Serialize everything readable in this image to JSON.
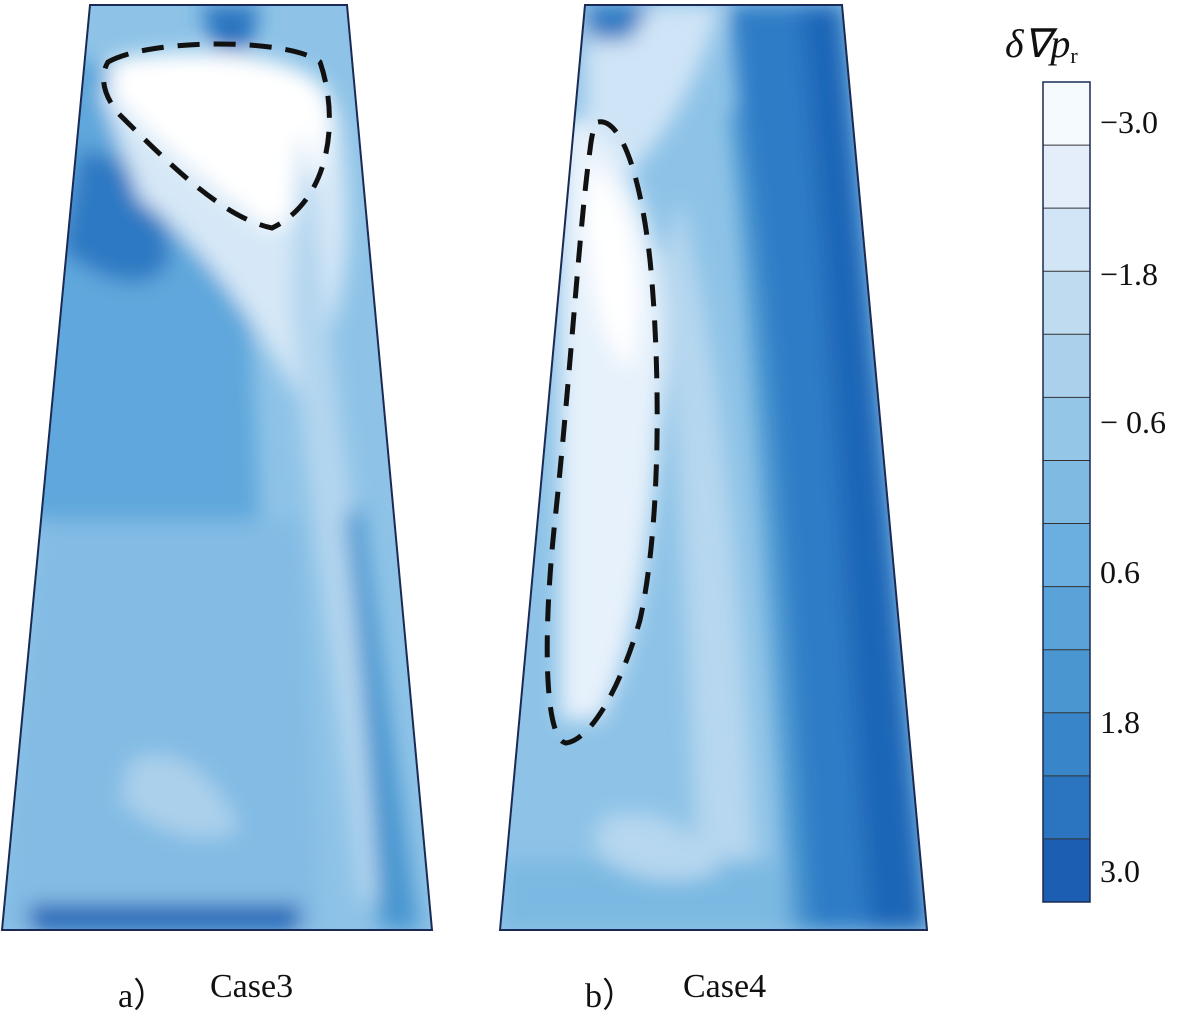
{
  "chart_data": {
    "type": "heatmap",
    "panels": [
      {
        "label": "a）",
        "title": "Case3"
      },
      {
        "label": "b）",
        "title": "Case4"
      }
    ],
    "colorbar": {
      "title_main": "δ∇p",
      "title_sub": "r",
      "tick_labels": [
        "−3.0",
        "−1.8",
        "− 0.6",
        "0.6",
        "1.8",
        "3.0"
      ],
      "levels": [
        -3.6,
        -3.0,
        -2.4,
        -1.8,
        -1.2,
        -0.6,
        0.0,
        0.6,
        1.2,
        1.8,
        2.4,
        3.0,
        3.6
      ],
      "colors": [
        "#f5faff",
        "#e4eefb",
        "#d2e5f7",
        "#bedbf0",
        "#aad0eb",
        "#94c6e7",
        "#7fbae3",
        "#6aafe0",
        "#5aa3d9",
        "#4a96d0",
        "#3886c9",
        "#2a74c0",
        "#1c5fb2"
      ]
    }
  }
}
